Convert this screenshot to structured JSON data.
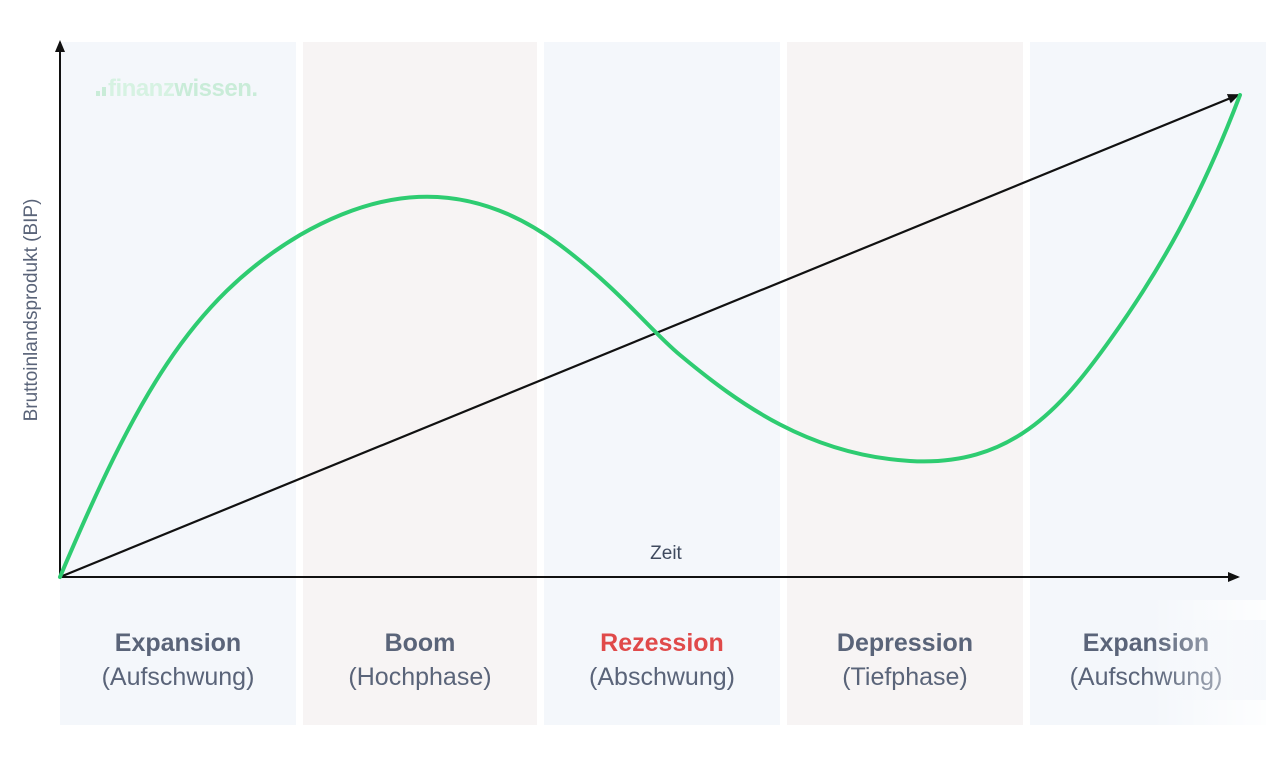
{
  "logo": {
    "part1": "finanz",
    "part2": "wissen."
  },
  "axes": {
    "y_label": "Bruttoinlandsprodukt (BIP)",
    "x_label": "Zeit"
  },
  "phases": [
    {
      "title": "Expansion",
      "subtitle": "(Aufschwung)",
      "bg": "#f4f7fb",
      "title_color": "#5a6479"
    },
    {
      "title": "Boom",
      "subtitle": "(Hochphase)",
      "bg": "#f7f4f4",
      "title_color": "#5a6479"
    },
    {
      "title": "Rezession",
      "subtitle": "(Abschwung)",
      "bg": "#f4f7fb",
      "title_color": "#e04a4a"
    },
    {
      "title": "Depression",
      "subtitle": "(Tiefphase)",
      "bg": "#f7f4f4",
      "title_color": "#5a6479"
    },
    {
      "title": "Expansion",
      "subtitle": "(Aufschwung)",
      "bg": "#f4f7fb",
      "title_color": "#5a6479"
    }
  ],
  "colors": {
    "cycle_curve": "#2ecc71",
    "trend_line": "#111111",
    "axis": "#111111"
  }
}
